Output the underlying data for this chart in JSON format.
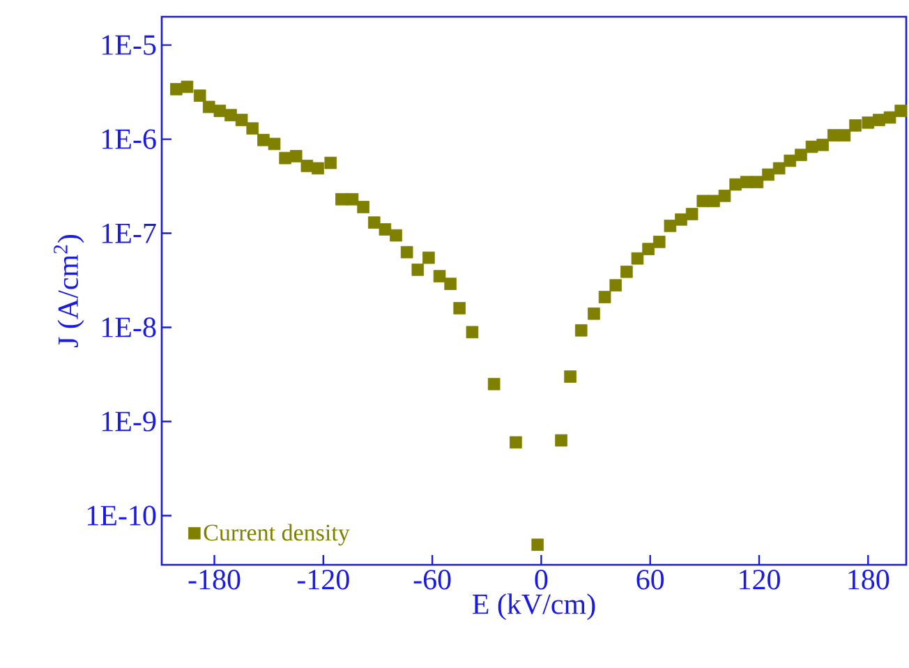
{
  "chart_data": {
    "type": "scatter",
    "xlabel": "E (kV/cm)",
    "ylabel": "J (A/cm$^{2}$)",
    "log": "y",
    "grid": false,
    "legend": "bottom left",
    "marker": "square",
    "xlim": [
      -209,
      201
    ],
    "ylim": [
      3e-11,
      2e-05
    ],
    "xticks": [
      -180,
      -120,
      -60,
      0,
      60,
      120,
      180
    ],
    "yticks": [
      {
        "value": 1e-05,
        "label": "1E-5"
      },
      {
        "value": 1e-06,
        "label": "1E-6"
      },
      {
        "value": 1e-07,
        "label": "1E-7"
      },
      {
        "value": 1e-08,
        "label": "1E-8"
      },
      {
        "value": 1e-09,
        "label": "1E-9"
      },
      {
        "value": 1e-10,
        "label": "1E-10"
      }
    ],
    "series": [
      {
        "name": "Current density",
        "color": "#808000",
        "x": [
          -201,
          -195,
          -188,
          -183,
          -177,
          -171,
          -165,
          -159,
          -153,
          -147,
          -141,
          -135,
          -129,
          -123,
          -116,
          -110,
          -104,
          -98,
          -92,
          -86,
          -80,
          -74,
          -68,
          -62,
          -56,
          -50,
          -45,
          -38,
          -26,
          -14,
          -2,
          11,
          16,
          22,
          29,
          35,
          41,
          47,
          53,
          59,
          65,
          71,
          77,
          83,
          89,
          95,
          101,
          107,
          113,
          119,
          125,
          131,
          137,
          143,
          149,
          155,
          161,
          167,
          173,
          180,
          186,
          192,
          198
        ],
        "values": [
          3.4e-06,
          3.6e-06,
          2.9e-06,
          2.2e-06,
          2e-06,
          1.8e-06,
          1.6e-06,
          1.3e-06,
          9.8e-07,
          8.9e-07,
          6.3e-07,
          6.6e-07,
          5.2e-07,
          4.9e-07,
          5.6e-07,
          2.3e-07,
          2.3e-07,
          1.9e-07,
          1.3e-07,
          1.1e-07,
          9.5e-08,
          6.3e-08,
          4.1e-08,
          5.5e-08,
          3.5e-08,
          2.9e-08,
          1.6e-08,
          8.9e-09,
          2.5e-09,
          6e-10,
          4.9e-11,
          6.3e-10,
          3e-09,
          9.3e-09,
          1.4e-08,
          2.1e-08,
          2.8e-08,
          3.9e-08,
          5.4e-08,
          6.8e-08,
          8.1e-08,
          1.2e-07,
          1.4e-07,
          1.6e-07,
          2.2e-07,
          2.2e-07,
          2.5e-07,
          3.3e-07,
          3.5e-07,
          3.5e-07,
          4.2e-07,
          4.9e-07,
          5.9e-07,
          6.8e-07,
          8.3e-07,
          8.7e-07,
          1.1e-06,
          1.1e-06,
          1.4e-06,
          1.5e-06,
          1.6e-06,
          1.7e-06,
          2e-06
        ]
      }
    ]
  }
}
